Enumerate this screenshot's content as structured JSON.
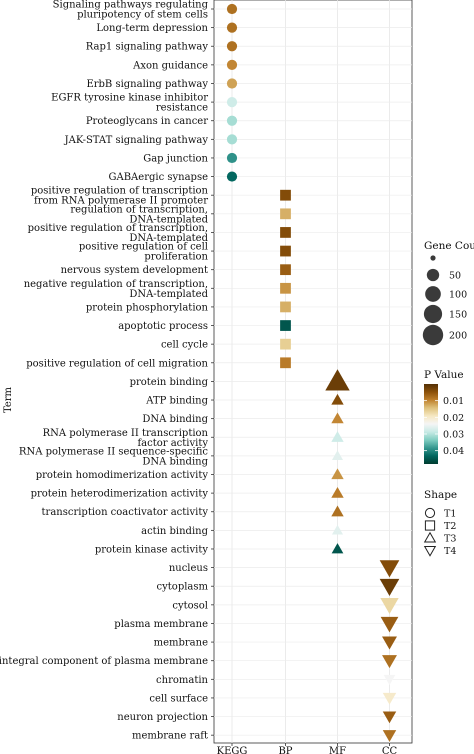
{
  "chart_data": {
    "type": "scatter",
    "title": "",
    "xlabel": "",
    "ylabel": "Term",
    "x_categories": [
      "KEGG",
      "BP",
      "MF",
      "CC"
    ],
    "terms": [
      {
        "label": [
          "Signaling pathways regulating",
          "pluripotency of stem cells"
        ],
        "category": "KEGG",
        "shape": "T1",
        "count": 25,
        "p": 0.008
      },
      {
        "label": [
          "Long-term depression"
        ],
        "category": "KEGG",
        "shape": "T1",
        "count": 25,
        "p": 0.008
      },
      {
        "label": [
          "Rap1 signaling pathway"
        ],
        "category": "KEGG",
        "shape": "T1",
        "count": 25,
        "p": 0.008
      },
      {
        "label": [
          "Axon guidance"
        ],
        "category": "KEGG",
        "shape": "T1",
        "count": 25,
        "p": 0.01
      },
      {
        "label": [
          "ErbB signaling pathway"
        ],
        "category": "KEGG",
        "shape": "T1",
        "count": 25,
        "p": 0.012
      },
      {
        "label": [
          "EGFR tyrosine kinase inhibitor",
          "resistance"
        ],
        "category": "KEGG",
        "shape": "T1",
        "count": 25,
        "p": 0.028
      },
      {
        "label": [
          "Proteoglycans in cancer"
        ],
        "category": "KEGG",
        "shape": "T1",
        "count": 25,
        "p": 0.031
      },
      {
        "label": [
          "JAK-STAT signaling pathway"
        ],
        "category": "KEGG",
        "shape": "T1",
        "count": 25,
        "p": 0.031
      },
      {
        "label": [
          "Gap junction"
        ],
        "category": "KEGG",
        "shape": "T1",
        "count": 25,
        "p": 0.039
      },
      {
        "label": [
          "GABAergic synapse"
        ],
        "category": "KEGG",
        "shape": "T1",
        "count": 25,
        "p": 0.043
      },
      {
        "label": [
          "positive regulation of transcription",
          "from RNA polymerase II promoter"
        ],
        "category": "BP",
        "shape": "T2",
        "count": 30,
        "p": 0.004
      },
      {
        "label": [
          "regulation of transcription,",
          "DNA-templated"
        ],
        "category": "BP",
        "shape": "T2",
        "count": 30,
        "p": 0.013
      },
      {
        "label": [
          "positive regulation of transcription,",
          "DNA-templated"
        ],
        "category": "BP",
        "shape": "T2",
        "count": 30,
        "p": 0.004
      },
      {
        "label": [
          "positive regulation of cell",
          "proliferation"
        ],
        "category": "BP",
        "shape": "T2",
        "count": 30,
        "p": 0.004
      },
      {
        "label": [
          "nervous system development"
        ],
        "category": "BP",
        "shape": "T2",
        "count": 30,
        "p": 0.006
      },
      {
        "label": [
          "negative regulation of transcription,",
          "DNA-templated"
        ],
        "category": "BP",
        "shape": "T2",
        "count": 30,
        "p": 0.011
      },
      {
        "label": [
          "protein phosphorylation"
        ],
        "category": "BP",
        "shape": "T2",
        "count": 30,
        "p": 0.013
      },
      {
        "label": [
          "apoptotic process"
        ],
        "category": "BP",
        "shape": "T2",
        "count": 30,
        "p": 0.045
      },
      {
        "label": [
          "cell cycle"
        ],
        "category": "BP",
        "shape": "T2",
        "count": 30,
        "p": 0.016
      },
      {
        "label": [
          "positive regulation of cell migration"
        ],
        "category": "BP",
        "shape": "T2",
        "count": 30,
        "p": 0.009
      },
      {
        "label": [
          "protein binding"
        ],
        "category": "MF",
        "shape": "T3",
        "count": 210,
        "p": 0.002
      },
      {
        "label": [
          "ATP binding"
        ],
        "category": "MF",
        "shape": "T3",
        "count": 30,
        "p": 0.004
      },
      {
        "label": [
          "DNA binding"
        ],
        "category": "MF",
        "shape": "T3",
        "count": 30,
        "p": 0.01
      },
      {
        "label": [
          "RNA polymerase II transcription",
          "factor activity"
        ],
        "category": "MF",
        "shape": "T3",
        "count": 30,
        "p": 0.028
      },
      {
        "label": [
          "RNA polymerase II sequence-specific",
          "DNA binding"
        ],
        "category": "MF",
        "shape": "T3",
        "count": 20,
        "p": 0.026
      },
      {
        "label": [
          "protein homodimerization activity"
        ],
        "category": "MF",
        "shape": "T3",
        "count": 30,
        "p": 0.011
      },
      {
        "label": [
          "protein heterodimerization activity"
        ],
        "category": "MF",
        "shape": "T3",
        "count": 30,
        "p": 0.009
      },
      {
        "label": [
          "transcription coactivator activity"
        ],
        "category": "MF",
        "shape": "T3",
        "count": 30,
        "p": 0.008
      },
      {
        "label": [
          "actin binding"
        ],
        "category": "MF",
        "shape": "T3",
        "count": 20,
        "p": 0.026
      },
      {
        "label": [
          "protein kinase activity"
        ],
        "category": "MF",
        "shape": "T3",
        "count": 25,
        "p": 0.045
      },
      {
        "label": [
          "nucleus"
        ],
        "category": "CC",
        "shape": "T4",
        "count": 120,
        "p": 0.004
      },
      {
        "label": [
          "cytoplasm"
        ],
        "category": "CC",
        "shape": "T4",
        "count": 120,
        "p": 0.002
      },
      {
        "label": [
          "cytosol"
        ],
        "category": "CC",
        "shape": "T4",
        "count": 100,
        "p": 0.017
      },
      {
        "label": [
          "plasma membrane"
        ],
        "category": "CC",
        "shape": "T4",
        "count": 90,
        "p": 0.006
      },
      {
        "label": [
          "membrane"
        ],
        "category": "CC",
        "shape": "T4",
        "count": 55,
        "p": 0.006
      },
      {
        "label": [
          "integral component of plasma membrane"
        ],
        "category": "CC",
        "shape": "T4",
        "count": 55,
        "p": 0.008
      },
      {
        "label": [
          "chromatin"
        ],
        "category": "CC",
        "shape": "T4",
        "count": 25,
        "p": 0.024
      },
      {
        "label": [
          "cell surface"
        ],
        "category": "CC",
        "shape": "T4",
        "count": 40,
        "p": 0.02
      },
      {
        "label": [
          "neuron projection"
        ],
        "category": "CC",
        "shape": "T4",
        "count": 40,
        "p": 0.006
      },
      {
        "label": [
          "membrane raft"
        ],
        "category": "CC",
        "shape": "T4",
        "count": 40,
        "p": 0.008
      }
    ],
    "legend": {
      "position": "right",
      "gene_count": {
        "title": "Gene Count",
        "values": [
          0,
          50,
          100,
          150,
          200
        ],
        "labels": [
          "",
          "50",
          "100",
          "150",
          "200"
        ]
      },
      "p_value": {
        "title": "P Value",
        "range": [
          0.0,
          0.048
        ],
        "ticks": [
          0.01,
          0.02,
          0.03,
          0.04
        ],
        "tick_labels": [
          "0.01",
          "0.02",
          "0.03",
          "0.04"
        ]
      },
      "shape": {
        "title": "Shape",
        "items": [
          "T1",
          "T2",
          "T3",
          "T4"
        ]
      }
    },
    "colors": {
      "scale": [
        "#543005",
        "#8c510a",
        "#bf812d",
        "#dfc27d",
        "#f6e8c3",
        "#f5f5f5",
        "#c7eae5",
        "#80cdc1",
        "#35978f",
        "#01665e",
        "#003c30"
      ]
    },
    "grid": true
  }
}
